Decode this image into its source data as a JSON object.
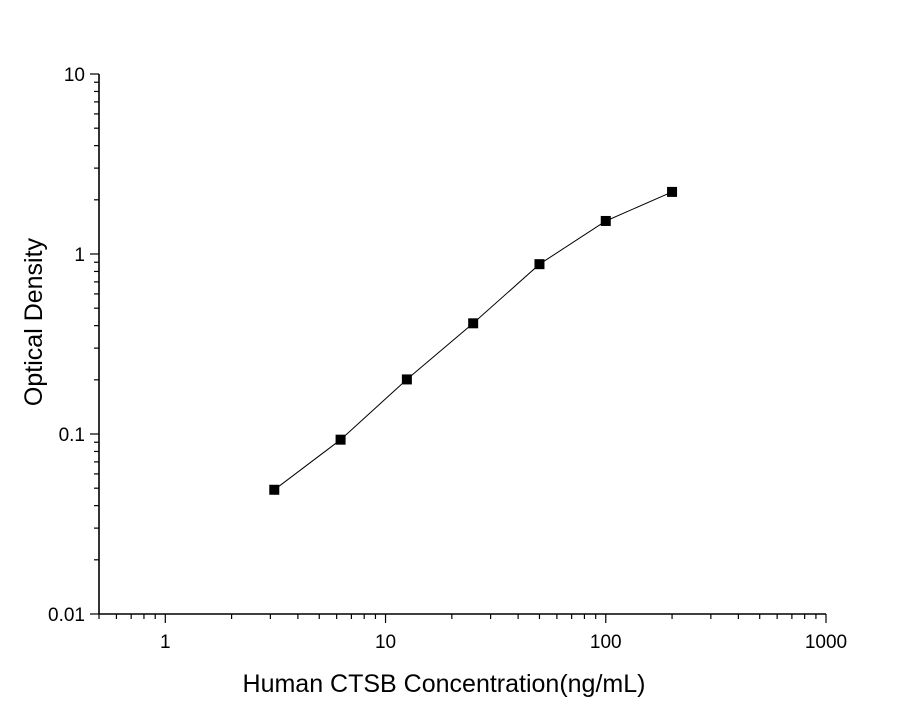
{
  "chart_data": {
    "type": "line",
    "title": "",
    "xlabel": "Human CTSB Concentration(ng/mL)",
    "ylabel": "Optical  Density",
    "x_scale": "log",
    "y_scale": "log",
    "xlim": [
      0.5,
      1000
    ],
    "ylim": [
      0.01,
      10
    ],
    "x_ticks": [
      {
        "value": 1,
        "label": "1"
      },
      {
        "value": 10,
        "label": "10"
      },
      {
        "value": 100,
        "label": "100"
      },
      {
        "value": 1000,
        "label": "1000"
      }
    ],
    "y_ticks": [
      {
        "value": 0.01,
        "label": "0.01"
      },
      {
        "value": 0.1,
        "label": "0.1"
      },
      {
        "value": 1,
        "label": "1"
      },
      {
        "value": 10,
        "label": "10"
      }
    ],
    "grid": false,
    "legend": "none",
    "marker": "square",
    "line_color": "#000000",
    "marker_color": "#000000",
    "series": [
      {
        "x": [
          3.125,
          6.25,
          12.5,
          25,
          50,
          100,
          200
        ],
        "y": [
          0.049,
          0.093,
          0.201,
          0.412,
          0.878,
          1.526,
          2.213
        ]
      }
    ]
  }
}
